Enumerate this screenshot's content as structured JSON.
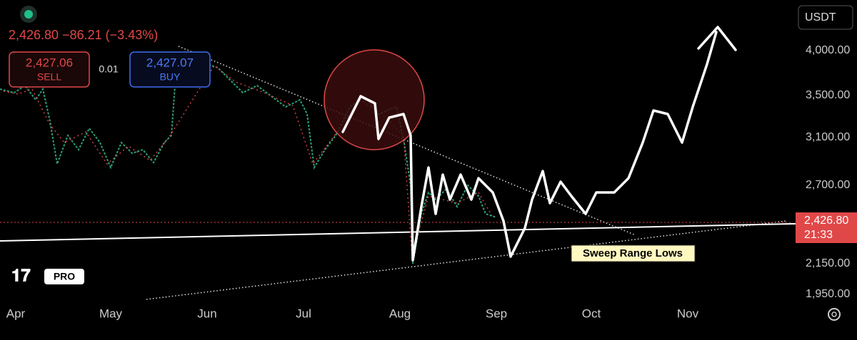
{
  "header": {
    "price": "2,426.80",
    "change": "−86.21",
    "change_pct": "(−3.43%)"
  },
  "sell": {
    "price": "2,427.06",
    "label": "SELL"
  },
  "spread": "0.01",
  "buy": {
    "price": "2,427.07",
    "label": "BUY"
  },
  "currency": "USDT",
  "price_axis": [
    "4,000.00",
    "3,500.00",
    "3,100.00",
    "2,700.00",
    "2,150.00",
    "1,950.00"
  ],
  "last_price": {
    "price": "2,426.80",
    "countdown": "21:33"
  },
  "time_axis": [
    "Apr",
    "May",
    "Jun",
    "Jul",
    "Aug",
    "Sep",
    "Oct",
    "Nov"
  ],
  "annotation": "Sweep Range Lows",
  "logo": "PRO"
}
